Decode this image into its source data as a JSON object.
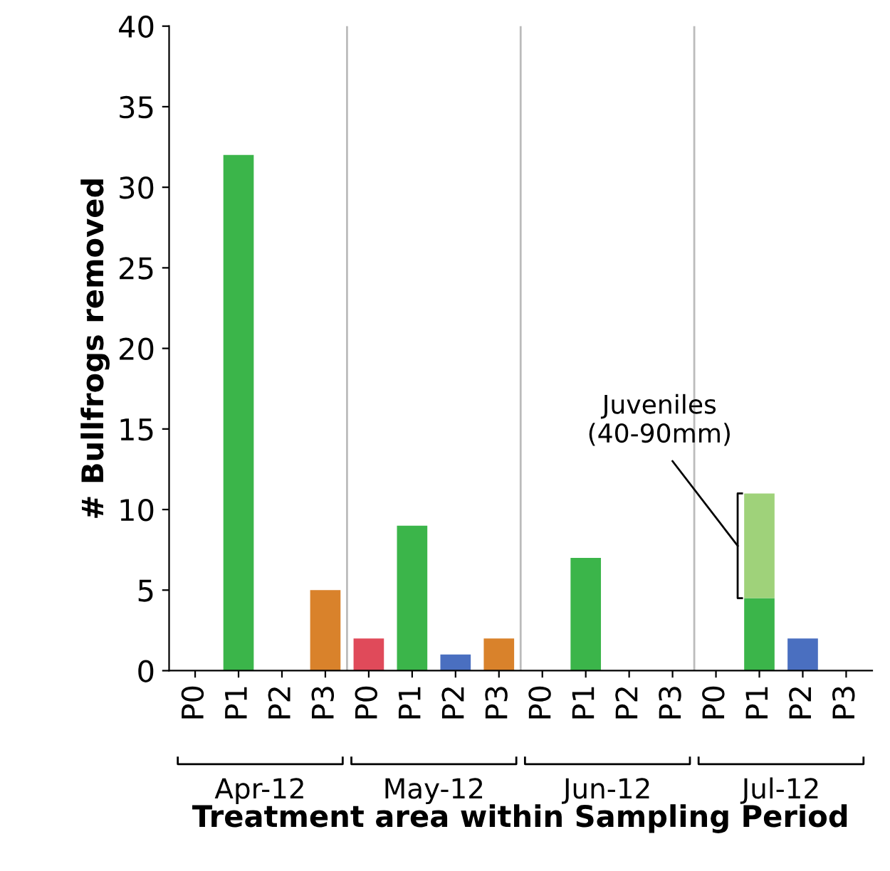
{
  "chart_data": {
    "type": "bar",
    "stacked": true,
    "xlabel": "Treatment area within Sampling Period",
    "ylabel": "# Bullfrogs removed",
    "categories": [
      "P0",
      "P1",
      "P2",
      "P3",
      "P0",
      "P1",
      "P2",
      "P3",
      "P0",
      "P1",
      "P2",
      "P3",
      "P0",
      "P1",
      "P2",
      "P3"
    ],
    "series": [
      {
        "colors": [
          "#e04a5a",
          "#3bb54a",
          "#4a6fc0",
          "#d9822b",
          "#e04a5a",
          "#3bb54a",
          "#4a6fc0",
          "#d9822b",
          "#e04a5a",
          "#3bb54a",
          "#4a6fc0",
          "#d9822b",
          "#e04a5a",
          "#3bb54a",
          "#4a6fc0",
          "#d9822b"
        ],
        "values": [
          0,
          32,
          0,
          5,
          2,
          9,
          1,
          2,
          0,
          7,
          0,
          0,
          0,
          4.5,
          2,
          0
        ]
      },
      {
        "color": "#9fd27a",
        "values": [
          null,
          null,
          null,
          null,
          null,
          null,
          null,
          null,
          null,
          null,
          null,
          null,
          null,
          6.5,
          null,
          null
        ]
      }
    ],
    "ylim": [
      0,
      40
    ],
    "yticks": [
      0,
      5,
      10,
      15,
      20,
      25,
      30,
      35,
      40
    ],
    "grid": false,
    "annotations": [
      "Apr-12",
      "May-12",
      "Jun-12",
      "Jul-12",
      "Juveniles\n(40-90mm)"
    ]
  }
}
